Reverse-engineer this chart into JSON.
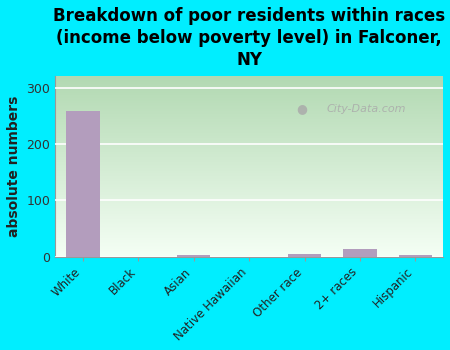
{
  "title": "Breakdown of poor residents within races\n(income below poverty level) in Falconer,\nNY",
  "categories": [
    "White",
    "Black",
    "Asian",
    "Native Hawaiian",
    "Other race",
    "2+ races",
    "Hispanic"
  ],
  "values": [
    258,
    0,
    2,
    0,
    4,
    13,
    3
  ],
  "bar_color": "#b39dbd",
  "ylabel": "absolute numbers",
  "ylim": [
    0,
    320
  ],
  "yticks": [
    0,
    100,
    200,
    300
  ],
  "background_color": "#00eeff",
  "gradient_top": "#b2d9b2",
  "gradient_bottom": "#f5fff5",
  "watermark": "City-Data.com",
  "title_fontsize": 12,
  "ylabel_fontsize": 10,
  "grid_color": "#ffffff"
}
